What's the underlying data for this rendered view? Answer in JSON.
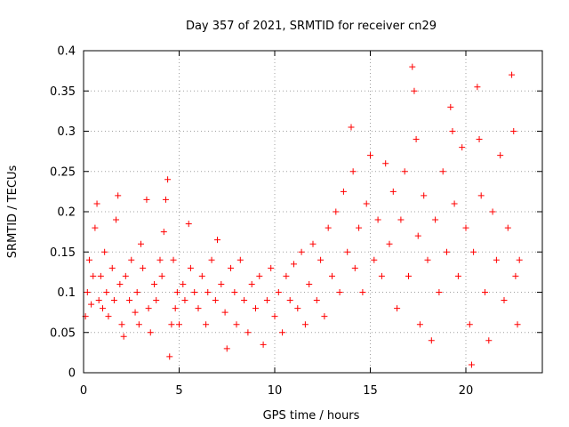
{
  "chart_data": {
    "type": "scatter",
    "title": "Day 357 of 2021, SRMTID for receiver cn29",
    "xlabel": "GPS time / hours",
    "ylabel": "SRMTID / TECUs",
    "xlim": [
      0,
      24
    ],
    "ylim": [
      0,
      0.4
    ],
    "x_ticks": [
      0,
      5,
      10,
      15,
      20
    ],
    "y_ticks": [
      0,
      0.05,
      0.1,
      0.15,
      0.2,
      0.25,
      0.3,
      0.35,
      0.4
    ],
    "x_tick_labels": [
      "0",
      "5",
      "10",
      "15",
      "20"
    ],
    "y_tick_labels": [
      "0",
      "0.05",
      "0.1",
      "0.15",
      "0.2",
      "0.25",
      "0.3",
      "0.35",
      "0.4"
    ],
    "grid": true,
    "marker": "+",
    "color": "#ff0000",
    "series": [
      {
        "name": "SRMTID",
        "points": [
          [
            0.1,
            0.07
          ],
          [
            0.2,
            0.1
          ],
          [
            0.3,
            0.14
          ],
          [
            0.4,
            0.085
          ],
          [
            0.5,
            0.12
          ],
          [
            0.6,
            0.18
          ],
          [
            0.7,
            0.21
          ],
          [
            0.8,
            0.09
          ],
          [
            0.9,
            0.12
          ],
          [
            1.0,
            0.08
          ],
          [
            1.1,
            0.15
          ],
          [
            1.2,
            0.1
          ],
          [
            1.3,
            0.07
          ],
          [
            1.5,
            0.13
          ],
          [
            1.6,
            0.09
          ],
          [
            1.7,
            0.19
          ],
          [
            1.8,
            0.22
          ],
          [
            1.9,
            0.11
          ],
          [
            2.0,
            0.06
          ],
          [
            2.1,
            0.045
          ],
          [
            2.2,
            0.12
          ],
          [
            2.4,
            0.09
          ],
          [
            2.5,
            0.14
          ],
          [
            2.7,
            0.075
          ],
          [
            2.8,
            0.1
          ],
          [
            2.9,
            0.06
          ],
          [
            3.0,
            0.16
          ],
          [
            3.1,
            0.13
          ],
          [
            3.3,
            0.215
          ],
          [
            3.4,
            0.08
          ],
          [
            3.5,
            0.05
          ],
          [
            3.7,
            0.11
          ],
          [
            3.8,
            0.09
          ],
          [
            4.0,
            0.14
          ],
          [
            4.1,
            0.12
          ],
          [
            4.2,
            0.175
          ],
          [
            4.3,
            0.215
          ],
          [
            4.4,
            0.24
          ],
          [
            4.5,
            0.02
          ],
          [
            4.6,
            0.06
          ],
          [
            4.7,
            0.14
          ],
          [
            4.8,
            0.08
          ],
          [
            4.9,
            0.1
          ],
          [
            5.0,
            0.06
          ],
          [
            5.2,
            0.11
          ],
          [
            5.3,
            0.09
          ],
          [
            5.5,
            0.185
          ],
          [
            5.6,
            0.13
          ],
          [
            5.8,
            0.1
          ],
          [
            6.0,
            0.08
          ],
          [
            6.2,
            0.12
          ],
          [
            6.4,
            0.06
          ],
          [
            6.5,
            0.1
          ],
          [
            6.7,
            0.14
          ],
          [
            6.9,
            0.09
          ],
          [
            7.0,
            0.165
          ],
          [
            7.2,
            0.11
          ],
          [
            7.4,
            0.075
          ],
          [
            7.5,
            0.03
          ],
          [
            7.7,
            0.13
          ],
          [
            7.9,
            0.1
          ],
          [
            8.0,
            0.06
          ],
          [
            8.2,
            0.14
          ],
          [
            8.4,
            0.09
          ],
          [
            8.6,
            0.05
          ],
          [
            8.8,
            0.11
          ],
          [
            9.0,
            0.08
          ],
          [
            9.2,
            0.12
          ],
          [
            9.4,
            0.035
          ],
          [
            9.6,
            0.09
          ],
          [
            9.8,
            0.13
          ],
          [
            10.0,
            0.07
          ],
          [
            10.2,
            0.1
          ],
          [
            10.4,
            0.05
          ],
          [
            10.6,
            0.12
          ],
          [
            10.8,
            0.09
          ],
          [
            11.0,
            0.135
          ],
          [
            11.2,
            0.08
          ],
          [
            11.4,
            0.15
          ],
          [
            11.6,
            0.06
          ],
          [
            11.8,
            0.11
          ],
          [
            12.0,
            0.16
          ],
          [
            12.2,
            0.09
          ],
          [
            12.4,
            0.14
          ],
          [
            12.6,
            0.07
          ],
          [
            12.8,
            0.18
          ],
          [
            13.0,
            0.12
          ],
          [
            13.2,
            0.2
          ],
          [
            13.4,
            0.1
          ],
          [
            13.6,
            0.225
          ],
          [
            13.8,
            0.15
          ],
          [
            14.0,
            0.305
          ],
          [
            14.1,
            0.25
          ],
          [
            14.2,
            0.13
          ],
          [
            14.4,
            0.18
          ],
          [
            14.6,
            0.1
          ],
          [
            14.8,
            0.21
          ],
          [
            15.0,
            0.27
          ],
          [
            15.2,
            0.14
          ],
          [
            15.4,
            0.19
          ],
          [
            15.6,
            0.12
          ],
          [
            15.8,
            0.26
          ],
          [
            16.0,
            0.16
          ],
          [
            16.2,
            0.225
          ],
          [
            16.4,
            0.08
          ],
          [
            16.6,
            0.19
          ],
          [
            16.8,
            0.25
          ],
          [
            17.0,
            0.12
          ],
          [
            17.2,
            0.38
          ],
          [
            17.3,
            0.35
          ],
          [
            17.4,
            0.29
          ],
          [
            17.5,
            0.17
          ],
          [
            17.6,
            0.06
          ],
          [
            17.8,
            0.22
          ],
          [
            18.0,
            0.14
          ],
          [
            18.2,
            0.04
          ],
          [
            18.4,
            0.19
          ],
          [
            18.6,
            0.1
          ],
          [
            18.8,
            0.25
          ],
          [
            19.0,
            0.15
          ],
          [
            19.2,
            0.33
          ],
          [
            19.3,
            0.3
          ],
          [
            19.4,
            0.21
          ],
          [
            19.6,
            0.12
          ],
          [
            19.8,
            0.28
          ],
          [
            20.0,
            0.18
          ],
          [
            20.2,
            0.06
          ],
          [
            20.3,
            0.01
          ],
          [
            20.4,
            0.15
          ],
          [
            20.6,
            0.355
          ],
          [
            20.7,
            0.29
          ],
          [
            20.8,
            0.22
          ],
          [
            21.0,
            0.1
          ],
          [
            21.2,
            0.04
          ],
          [
            21.4,
            0.2
          ],
          [
            21.6,
            0.14
          ],
          [
            21.8,
            0.27
          ],
          [
            22.0,
            0.09
          ],
          [
            22.2,
            0.18
          ],
          [
            22.4,
            0.37
          ],
          [
            22.5,
            0.3
          ],
          [
            22.6,
            0.12
          ],
          [
            22.7,
            0.06
          ],
          [
            22.8,
            0.14
          ]
        ]
      }
    ]
  }
}
